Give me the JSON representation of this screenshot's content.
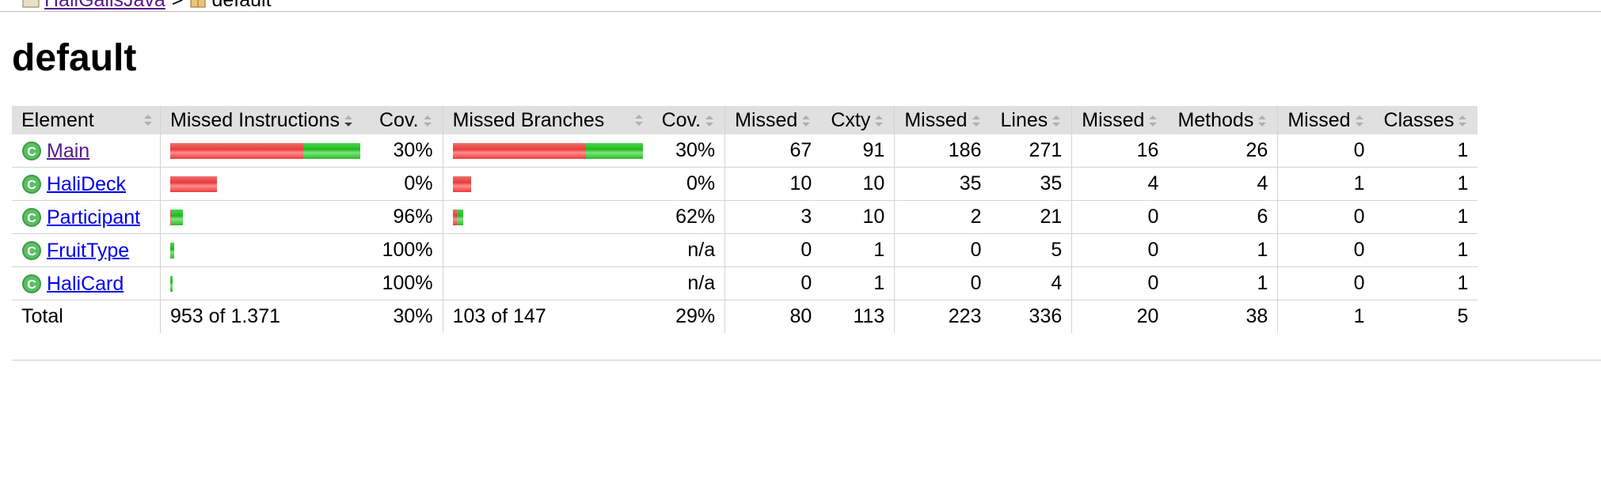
{
  "breadcrumb": {
    "parent": "HaliGalisJava",
    "separator": ">",
    "current": "default"
  },
  "page_title": "default",
  "table": {
    "headers": {
      "element": "Element",
      "missed_instructions": "Missed Instructions",
      "cov": "Cov.",
      "missed_branches": "Missed Branches",
      "cov2": "Cov.",
      "missed": "Missed",
      "cxty": "Cxty",
      "missed_lines": "Missed",
      "lines": "Lines",
      "missed_methods": "Missed",
      "methods": "Methods",
      "missed_classes": "Missed",
      "classes": "Classes"
    },
    "rows": [
      {
        "name": "Main",
        "instr_cov": "30%",
        "branch_cov": "30%",
        "missed_cxty": "67",
        "cxty": "91",
        "missed_lines": "186",
        "lines": "271",
        "missed_methods": "16",
        "methods": "26",
        "missed_classes": "0",
        "classes": "1",
        "instr_bar": {
          "missed_fraction": 0.7,
          "scale": 1.0
        },
        "branch_bar": {
          "missed_fraction": 0.7,
          "scale": 1.0
        }
      },
      {
        "name": "HaliDeck",
        "instr_cov": "0%",
        "branch_cov": "0%",
        "missed_cxty": "10",
        "cxty": "10",
        "missed_lines": "35",
        "lines": "35",
        "missed_methods": "4",
        "methods": "4",
        "missed_classes": "1",
        "classes": "1",
        "instr_bar": {
          "missed_fraction": 1.0,
          "scale": 0.245
        },
        "branch_bar": {
          "missed_fraction": 1.0,
          "scale": 0.095
        }
      },
      {
        "name": "Participant",
        "instr_cov": "96%",
        "branch_cov": "62%",
        "missed_cxty": "3",
        "cxty": "10",
        "missed_lines": "2",
        "lines": "21",
        "missed_methods": "0",
        "methods": "6",
        "missed_classes": "0",
        "classes": "1",
        "instr_bar": {
          "missed_fraction": 0.04,
          "scale": 0.065
        },
        "branch_bar": {
          "missed_fraction": 0.38,
          "scale": 0.054
        }
      },
      {
        "name": "FruitType",
        "instr_cov": "100%",
        "branch_cov": "n/a",
        "missed_cxty": "0",
        "cxty": "1",
        "missed_lines": "0",
        "lines": "5",
        "missed_methods": "0",
        "methods": "1",
        "missed_classes": "0",
        "classes": "1",
        "instr_bar": {
          "missed_fraction": 0.0,
          "scale": 0.022
        },
        "branch_bar": null
      },
      {
        "name": "HaliCard",
        "instr_cov": "100%",
        "branch_cov": "n/a",
        "missed_cxty": "0",
        "cxty": "1",
        "missed_lines": "0",
        "lines": "4",
        "missed_methods": "0",
        "methods": "1",
        "missed_classes": "0",
        "classes": "1",
        "instr_bar": {
          "missed_fraction": 0.0,
          "scale": 0.011
        },
        "branch_bar": null
      }
    ],
    "total": {
      "label": "Total",
      "missed_instructions": "953 of 1.371",
      "instr_cov": "30%",
      "missed_branches": "103 of 147",
      "branch_cov": "29%",
      "missed_cxty": "80",
      "cxty": "113",
      "missed_lines": "223",
      "lines": "336",
      "missed_methods": "20",
      "methods": "38",
      "missed_classes": "1",
      "classes": "5"
    }
  },
  "colors": {
    "missed": "#e83b3b",
    "covered": "#22b622",
    "header_bg": "#e0e0e0",
    "link": "#0000ee",
    "visited_link": "#551a8b"
  },
  "icons": {
    "breadcrumb_parent": "project-icon",
    "breadcrumb_current": "package-icon",
    "row": "class-icon"
  }
}
